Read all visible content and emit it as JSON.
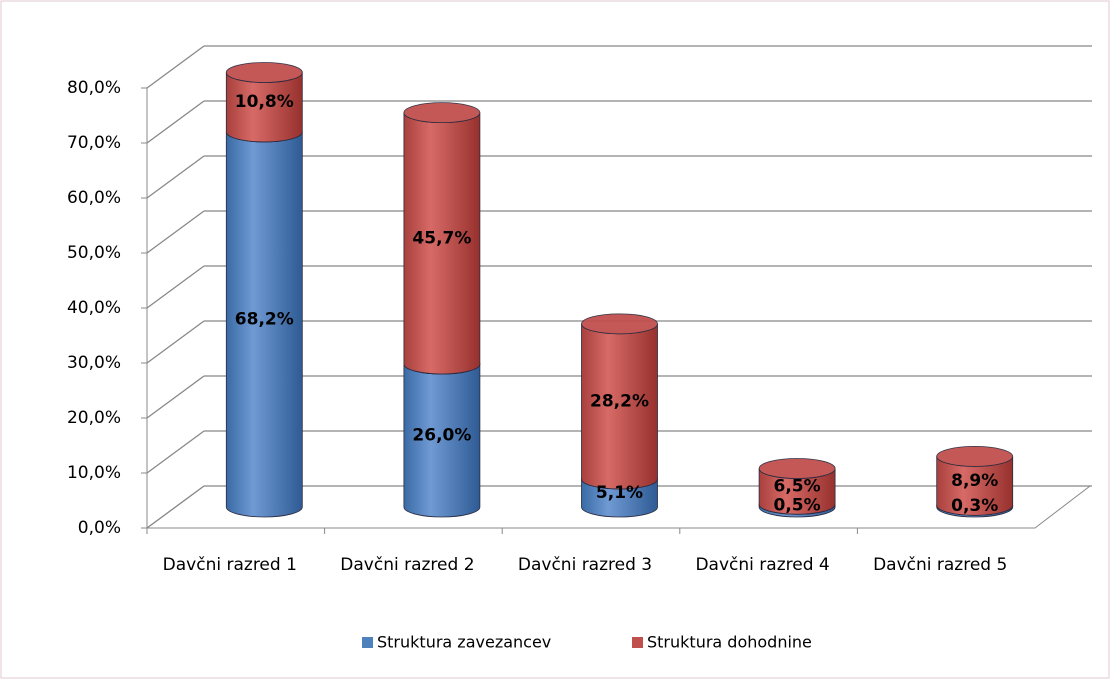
{
  "chart_data": {
    "type": "bar3d",
    "categories": [
      "Davčni razred 1",
      "Davčni razred 2",
      "Davčni razred 3",
      "Davčni razred 4",
      "Davčni razred 5"
    ],
    "series": [
      {
        "name": "Struktura zavezancev",
        "color": "#4f81bd",
        "values": [
          68.2,
          26.0,
          5.1,
          0.5,
          0.3
        ],
        "value_labels": [
          "68,2%",
          "26,0%",
          "5,1%",
          "0,5%",
          "0,3%"
        ]
      },
      {
        "name": "Struktura dohodnine",
        "color": "#c0504d",
        "values": [
          10.8,
          45.7,
          28.2,
          6.5,
          8.9
        ],
        "value_labels": [
          "10,8%",
          "45,7%",
          "28,2%",
          "6,5%",
          "8,9%"
        ]
      }
    ],
    "stacked": true,
    "ylim": [
      0,
      80
    ],
    "yticks": [
      {
        "value": 0,
        "label": "0,0%"
      },
      {
        "value": 10,
        "label": "10,0%"
      },
      {
        "value": 20,
        "label": "20,0%"
      },
      {
        "value": 30,
        "label": "30,0%"
      },
      {
        "value": 40,
        "label": "40,0%"
      },
      {
        "value": 50,
        "label": "50,0%"
      },
      {
        "value": 60,
        "label": "60,0%"
      },
      {
        "value": 70,
        "label": "70,0%"
      },
      {
        "value": 80,
        "label": "80,0%"
      }
    ],
    "grid": true,
    "legend": "bottom"
  }
}
